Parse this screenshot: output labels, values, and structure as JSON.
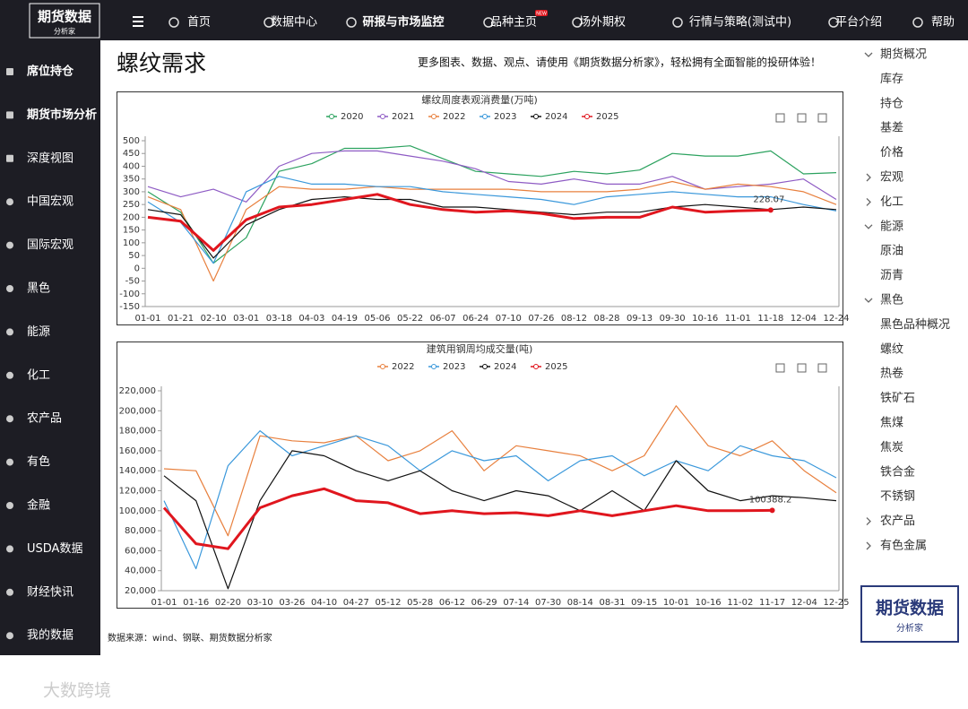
{
  "logo": {
    "main": "期货数据",
    "sub": "分析家"
  },
  "nav": [
    "首页",
    "数据中心",
    "研报与市场监控",
    "品种主页",
    "场外期权",
    "行情与策略(测试中)",
    "平台介绍",
    "帮助"
  ],
  "nav_badge": "NEW",
  "sidebar": [
    "席位持仓",
    "期货市场分析",
    "深度视图",
    "中国宏观",
    "国际宏观",
    "黑色",
    "能源",
    "化工",
    "农产品",
    "有色",
    "金融",
    "USDA数据",
    "财经快讯",
    "我的数据"
  ],
  "page_title": "螺纹需求",
  "promo": "更多图表、数据、观点、请使用《期货数据分析家》，轻松拥有全面智能的投研体验！",
  "right_menu": [
    {
      "title": "期货概况",
      "items": [
        "库存",
        "持仓",
        "基差",
        "价格"
      ]
    },
    {
      "title": "宏观",
      "items": []
    },
    {
      "title": "化工",
      "items": []
    },
    {
      "title": "能源",
      "items": [
        "原油",
        "沥青"
      ]
    },
    {
      "title": "黑色",
      "items": [
        "黑色品种概况",
        "螺纹",
        "热卷",
        "铁矿石",
        "焦煤",
        "焦炭",
        "铁合金",
        "不锈钢"
      ]
    },
    {
      "title": "农产品",
      "items": []
    },
    {
      "title": "有色金属",
      "items": []
    }
  ],
  "source": "数据来源：wind、钢联、期货数据分析家",
  "watermark": "大数跨境",
  "chart_data": [
    {
      "type": "line",
      "title": "螺纹周度表观消费量(万吨)",
      "categories": [
        "01-01",
        "01-21",
        "02-10",
        "03-01",
        "03-18",
        "04-03",
        "04-19",
        "05-06",
        "05-22",
        "06-07",
        "06-24",
        "07-10",
        "07-26",
        "08-12",
        "08-28",
        "09-13",
        "09-30",
        "10-16",
        "11-01",
        "11-18",
        "12-04",
        "12-24"
      ],
      "series": [
        {
          "name": "2020",
          "color": "#2ca25f",
          "values": [
            300,
            220,
            20,
            120,
            380,
            410,
            470,
            470,
            480,
            430,
            380,
            370,
            360,
            380,
            370,
            385,
            450,
            440,
            440,
            460,
            370,
            375
          ]
        },
        {
          "name": "2021",
          "color": "#8e5bc4",
          "values": [
            320,
            280,
            310,
            260,
            400,
            450,
            460,
            460,
            440,
            420,
            390,
            340,
            330,
            350,
            330,
            330,
            360,
            310,
            320,
            330,
            350,
            270
          ]
        },
        {
          "name": "2022",
          "color": "#e8803e",
          "values": [
            280,
            230,
            -50,
            230,
            320,
            310,
            310,
            320,
            310,
            310,
            310,
            310,
            300,
            300,
            300,
            310,
            340,
            310,
            330,
            320,
            300,
            250
          ]
        },
        {
          "name": "2023",
          "color": "#3a98db",
          "values": [
            260,
            180,
            20,
            300,
            360,
            330,
            330,
            320,
            320,
            300,
            290,
            280,
            270,
            250,
            280,
            290,
            300,
            290,
            280,
            280,
            250,
            225
          ]
        },
        {
          "name": "2024",
          "color": "#111111",
          "values": [
            230,
            210,
            40,
            170,
            230,
            270,
            280,
            270,
            270,
            240,
            240,
            230,
            220,
            210,
            220,
            220,
            240,
            250,
            240,
            230,
            240,
            230
          ]
        },
        {
          "name": "2025",
          "color": "#e0161e",
          "values": [
            200,
            185,
            70,
            190,
            240,
            250,
            270,
            290,
            250,
            230,
            220,
            225,
            215,
            195,
            200,
            200,
            240,
            220,
            225,
            228.07,
            null,
            null
          ]
        }
      ],
      "annotation": "228.07",
      "ylim": [
        -150,
        500
      ],
      "yticks": [
        -150,
        -100,
        -50,
        0,
        50,
        100,
        150,
        200,
        250,
        300,
        350,
        400,
        450,
        500
      ]
    },
    {
      "type": "line",
      "title": "建筑用钢周均成交量(吨)",
      "categories": [
        "01-01",
        "01-16",
        "02-20",
        "03-10",
        "03-26",
        "04-10",
        "04-27",
        "05-12",
        "05-28",
        "06-12",
        "06-29",
        "07-14",
        "07-30",
        "08-14",
        "08-31",
        "09-15",
        "10-01",
        "10-16",
        "11-02",
        "11-17",
        "12-04",
        "12-25"
      ],
      "series": [
        {
          "name": "2022",
          "color": "#e8803e",
          "values": [
            142000,
            140000,
            75000,
            175000,
            170000,
            168000,
            175000,
            150000,
            160000,
            180000,
            140000,
            165000,
            160000,
            155000,
            140000,
            155000,
            205000,
            165000,
            155000,
            170000,
            140000,
            118000
          ]
        },
        {
          "name": "2023",
          "color": "#3a98db",
          "values": [
            110000,
            42000,
            145000,
            180000,
            155000,
            165000,
            175000,
            165000,
            140000,
            160000,
            150000,
            155000,
            130000,
            150000,
            155000,
            135000,
            150000,
            140000,
            165000,
            155000,
            150000,
            133000
          ]
        },
        {
          "name": "2024",
          "color": "#111111",
          "values": [
            135000,
            110000,
            22000,
            110000,
            160000,
            155000,
            140000,
            130000,
            140000,
            120000,
            110000,
            120000,
            115000,
            100000,
            120000,
            100000,
            150000,
            120000,
            110000,
            115000,
            113000,
            110000
          ]
        },
        {
          "name": "2025",
          "color": "#e0161e",
          "values": [
            103000,
            67000,
            62000,
            103000,
            115000,
            122000,
            110000,
            108000,
            97000,
            100000,
            97000,
            98000,
            95000,
            100000,
            95000,
            100000,
            105000,
            100000,
            100000,
            100388.2,
            null,
            null
          ]
        }
      ],
      "annotation": "100388.2",
      "ylim": [
        20000,
        220000
      ],
      "yticks": [
        {
          "value": 20000,
          "label": "20,000"
        },
        {
          "value": 40000,
          "label": "40,000"
        },
        {
          "value": 60000,
          "label": "60,000"
        },
        {
          "value": 80000,
          "label": "80,000"
        },
        {
          "value": 100000,
          "label": "100,000"
        },
        {
          "value": 120000,
          "label": "120,000"
        },
        {
          "value": 140000,
          "label": "140,000"
        },
        {
          "value": 160000,
          "label": "160,000"
        },
        {
          "value": 180000,
          "label": "180,000"
        },
        {
          "value": 200000,
          "label": "200,000"
        },
        {
          "value": 220000,
          "label": "220,000"
        }
      ]
    }
  ]
}
